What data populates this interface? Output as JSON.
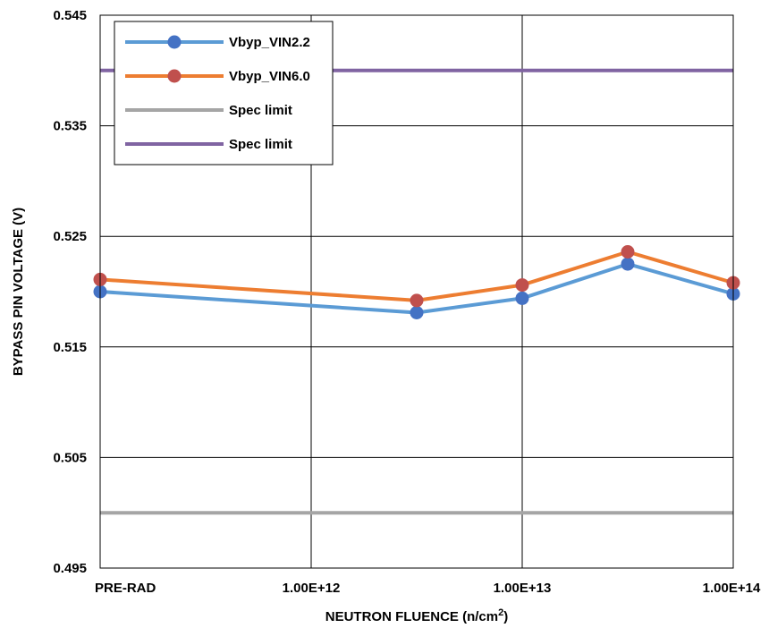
{
  "chart_data": {
    "type": "line",
    "xlabel": "NEUTRON FLUENCE (n/cm",
    "xlabel_sup": "2",
    "xlabel_close": ")",
    "ylabel": "BYPASS PIN VOLTAGE (V)",
    "x_tick_labels": [
      {
        "label": "PRE-RAD",
        "pos": 0
      },
      {
        "label": "1.00E+12",
        "pos": 1
      },
      {
        "label": "1.00E+13",
        "pos": 2
      },
      {
        "label": "1.00E+14",
        "pos": 3
      }
    ],
    "y_ticks": [
      {
        "label": "0.545",
        "value": 0.545
      },
      {
        "label": "0.535",
        "value": 0.535
      },
      {
        "label": "0.525",
        "value": 0.525
      },
      {
        "label": "0.515",
        "value": 0.515
      },
      {
        "label": "0.505",
        "value": 0.505
      },
      {
        "label": "0.495",
        "value": 0.495
      }
    ],
    "xlim": [
      0,
      3
    ],
    "ylim": [
      0.495,
      0.545
    ],
    "grid": true,
    "legend_position": "top-left",
    "series": [
      {
        "name": "Vbyp_VIN2.2",
        "color": "#5B9BD5",
        "marker_color": "#4472C4",
        "x": [
          0,
          1.5,
          2,
          2.5,
          3
        ],
        "y": [
          0.52,
          0.5181,
          0.5194,
          0.5225,
          0.5198
        ]
      },
      {
        "name": "Vbyp_VIN6.0",
        "color": "#ED7D31",
        "marker_color": "#C0504D",
        "x": [
          0,
          1.5,
          2,
          2.5,
          3
        ],
        "y": [
          0.5211,
          0.5192,
          0.5206,
          0.5236,
          0.5208
        ]
      },
      {
        "name": "Spec limit",
        "color": "#A5A5A5",
        "hline": 0.5
      },
      {
        "name": "Spec limit",
        "color": "#8064A2",
        "hline": 0.54
      }
    ]
  }
}
